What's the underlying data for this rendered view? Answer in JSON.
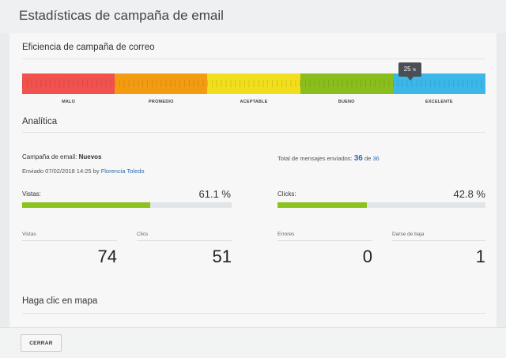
{
  "header": {
    "title": "Estadísticas de campaña de email"
  },
  "efficiency": {
    "title": "Eficiencia de campaña de correo",
    "segments": [
      {
        "label": "MALO",
        "color": "#f1524d"
      },
      {
        "label": "PROMEDIO",
        "color": "#f39c12"
      },
      {
        "label": "ACEPTABLE",
        "color": "#f1de1c"
      },
      {
        "label": "BUENO",
        "color": "#89be1d"
      },
      {
        "label": "EXCELENTE",
        "color": "#3bb7e8"
      }
    ],
    "pointer_value": "25",
    "pointer_unit": "%"
  },
  "analytics": {
    "title": "Analítica",
    "campaign_label": "Campaña de email:",
    "campaign_name": "Nuevos",
    "sent_prefix": "Enviado 07/02/2018 14:25 by",
    "sent_by": "Florencia Toledo",
    "total_prefix": "Total de mensajes enviados:",
    "total_sent": "36",
    "total_of": "de",
    "total_count": "36",
    "views_label": "Vistas:",
    "views_percent": "61.1 %",
    "views_fraction": 0.611,
    "clicks_label": "Clicks:",
    "clicks_percent": "42.8 %",
    "clicks_fraction": 0.428,
    "stats": [
      {
        "label": "Vistas",
        "value": "74"
      },
      {
        "label": "Clics",
        "value": "51"
      },
      {
        "label": "Errores",
        "value": "0"
      },
      {
        "label": "Darse de baja",
        "value": "1"
      }
    ]
  },
  "map": {
    "title": "Haga clic en mapa"
  },
  "footer": {
    "close_label": "CERRAR"
  }
}
